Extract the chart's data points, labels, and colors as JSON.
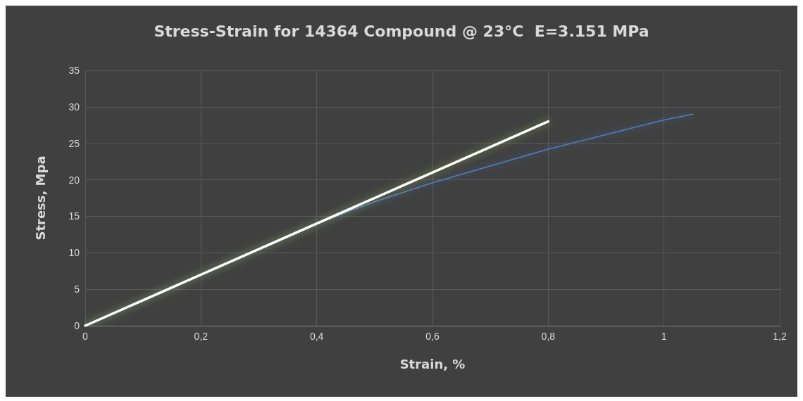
{
  "chart_data": {
    "type": "line",
    "title": "Stress-Strain for 14364 Compound @ 23°C  E=3.151 MPa",
    "xlabel": "Strain, %",
    "ylabel": "Stress, Mpa",
    "xlim": [
      0,
      1.2
    ],
    "xticks": [
      {
        "value": 0,
        "label": "0"
      },
      {
        "value": 0.2,
        "label": "0,2"
      },
      {
        "value": 0.4,
        "label": "0,4"
      },
      {
        "value": 0.6,
        "label": "0,6"
      },
      {
        "value": 0.8,
        "label": "0,8"
      },
      {
        "value": 1,
        "label": "1"
      },
      {
        "value": 1.2,
        "label": "1,2"
      }
    ],
    "ylim": [
      0,
      35
    ],
    "yticks": [
      0,
      5,
      10,
      15,
      20,
      25,
      30,
      35
    ],
    "grid": true,
    "marker": "none",
    "line_style": "solid",
    "series": [
      {
        "color": "#4f81bd",
        "x": [
          0,
          0.4,
          0.5,
          0.6,
          0.8,
          1.0,
          1.05
        ],
        "values": [
          0,
          14,
          17,
          19.6,
          24.2,
          28.2,
          29
        ]
      },
      {
        "color": "#ffffff",
        "x": [
          0,
          0.8
        ],
        "values": [
          0,
          28
        ]
      }
    ]
  }
}
